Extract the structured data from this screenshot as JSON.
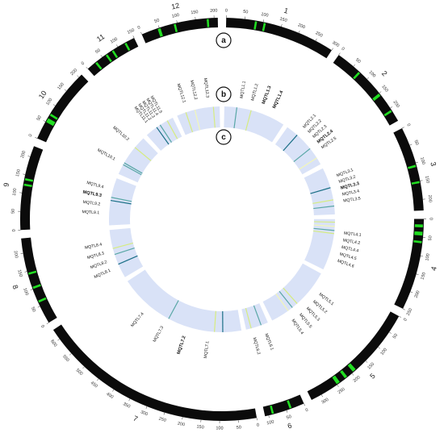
{
  "panel_tags": [
    "a",
    "b",
    "c"
  ],
  "colors": {
    "chromosome_band": "#0b0b0b",
    "qtl_highlight": "#22dd22",
    "heat_ring": "#d9e2f7",
    "heat_line_dark": "#1a6f86",
    "heat_line_mid": "#59a7a6",
    "heat_line_light": "#d6ec80",
    "heat_line_pale": "#f2f7b8"
  },
  "chromosomes": [
    {
      "id": "1",
      "length": 300,
      "ticks": [
        0,
        50,
        100,
        150,
        200,
        250,
        300
      ],
      "qtl": [
        "MQTL1.1",
        "MQTL1.2",
        "MQTL1.3",
        "MQTL1.4"
      ],
      "bold": [
        "MQTL1.3",
        "MQTL1.4"
      ],
      "highlights": [
        [
          78,
          5
        ],
        [
          102,
          4
        ]
      ],
      "heat": [
        [
          60,
          "heat_line_mid"
        ],
        [
          130,
          "heat_line_light"
        ]
      ]
    },
    {
      "id": "2",
      "length": 240,
      "ticks": [
        0,
        50,
        100,
        150,
        200
      ],
      "qtl": [
        "MQTL2.1",
        "MQTL2.2",
        "MQTL2.3",
        "MQTL2.4",
        "MQTL2.5"
      ],
      "bold": [
        "MQTL2.4"
      ],
      "highlights": [
        [
          70,
          6
        ],
        [
          150,
          8
        ],
        [
          205,
          6
        ]
      ],
      "heat": [
        [
          60,
          "heat_line_dark"
        ],
        [
          150,
          "heat_line_mid"
        ],
        [
          205,
          "heat_line_pale"
        ]
      ]
    },
    {
      "id": "3",
      "length": 230,
      "ticks": [
        0,
        50,
        100,
        150,
        200
      ],
      "qtl": [
        "MQTL3.1",
        "MQTL3.2",
        "MQTL3.3",
        "MQTL3.4",
        "MQTL3.5"
      ],
      "bold": [
        "MQTL3.3"
      ],
      "highlights": [
        [
          105,
          6
        ],
        [
          150,
          4
        ]
      ],
      "heat": [
        [
          100,
          "heat_line_dark"
        ],
        [
          160,
          "heat_line_light"
        ],
        [
          190,
          "heat_line_mid"
        ]
      ]
    },
    {
      "id": "4",
      "length": 250,
      "ticks": [
        0,
        50,
        100,
        150,
        200,
        250
      ],
      "qtl": [
        "MQTL4.1",
        "MQTL4.2",
        "MQTL4.4",
        "MQTL4.5",
        "MQTL4.6"
      ],
      "bold": [],
      "highlights": [
        [
          15,
          8
        ],
        [
          35,
          10
        ],
        [
          60,
          6
        ]
      ],
      "heat": [
        [
          15,
          "heat_line_light"
        ],
        [
          35,
          "heat_line_pale"
        ],
        [
          55,
          "heat_line_mid"
        ],
        [
          70,
          "heat_line_light"
        ]
      ]
    },
    {
      "id": "5",
      "length": 330,
      "ticks": [
        0,
        50,
        100,
        150,
        200,
        250,
        300
      ],
      "qtl": [
        "MQTL5.1",
        "MQTL5.2",
        "MQTL5.3",
        "MQTL5.5",
        "MQTL5.4"
      ],
      "bold": [],
      "highlights": [
        [
          185,
          10
        ],
        [
          215,
          8
        ],
        [
          240,
          10
        ]
      ],
      "heat": [
        [
          185,
          "heat_line_light"
        ],
        [
          215,
          "heat_line_mid"
        ],
        [
          240,
          "heat_line_pale"
        ]
      ]
    },
    {
      "id": "6",
      "length": 110,
      "ticks": [
        0,
        50,
        100
      ],
      "qtl": [
        "MQTL6.1",
        "MQTL6.2"
      ],
      "bold": [],
      "highlights": [
        [
          35,
          6
        ],
        [
          85,
          4
        ]
      ],
      "heat": [
        [
          35,
          "heat_line_mid"
        ],
        [
          85,
          "heat_line_light"
        ]
      ]
    },
    {
      "id": "7",
      "length": 630,
      "ticks": [
        0,
        50,
        100,
        150,
        200,
        250,
        300,
        350,
        400,
        450,
        500,
        550,
        600
      ],
      "qtl": [
        "MQTL7.1",
        "MQTL7.2",
        "MQTL7.3",
        "MQTL7.4"
      ],
      "bold": [
        "MQTL7.2"
      ],
      "highlights": [],
      "heat": [
        [
          90,
          "heat_line_dark"
        ],
        [
          130,
          "heat_line_light"
        ],
        [
          360,
          "heat_line_mid"
        ]
      ]
    },
    {
      "id": "8",
      "length": 240,
      "ticks": [
        0,
        50,
        100,
        150,
        200
      ],
      "qtl": [
        "MQTL8.1",
        "MQTL8.2",
        "MQTL8.3",
        "MQTL8.4"
      ],
      "bold": [],
      "highlights": [
        [
          60,
          6
        ],
        [
          100,
          6
        ],
        [
          140,
          4
        ]
      ],
      "heat": [
        [
          70,
          "heat_line_dark"
        ],
        [
          120,
          "heat_line_mid"
        ],
        [
          150,
          "heat_line_light"
        ]
      ]
    },
    {
      "id": "9",
      "length": 230,
      "ticks": [
        0,
        50,
        100,
        150,
        200
      ],
      "qtl": [
        "MQTL9.1",
        "MQTL9.2",
        "MQTL9.3",
        "MQTL9.4"
      ],
      "bold": [
        "MQTL9.3"
      ],
      "highlights": [
        [
          120,
          5
        ],
        [
          135,
          4
        ]
      ],
      "heat": [
        [
          120,
          "heat_line_dark"
        ],
        [
          135,
          "heat_line_mid"
        ]
      ]
    },
    {
      "id": "10",
      "length": 210,
      "ticks": [
        0,
        50,
        100,
        150,
        200
      ],
      "qtl": [
        "MQTL10.1",
        "MQTL10.2"
      ],
      "bold": [],
      "highlights": [
        [
          50,
          12
        ],
        [
          70,
          6
        ]
      ],
      "heat": [
        [
          50,
          "heat_line_mid"
        ],
        [
          60,
          "heat_line_mid"
        ],
        [
          150,
          "heat_line_light"
        ]
      ]
    },
    {
      "id": "11",
      "length": 150,
      "ticks": [
        0,
        50,
        100,
        150
      ],
      "qtl": [
        "MQTL11.1",
        "MQTL11.2",
        "MQTL11.3",
        "MQTL11.4",
        "MQTL11.5"
      ],
      "bold": [],
      "highlights": [
        [
          25,
          6
        ],
        [
          60,
          5
        ],
        [
          80,
          4
        ],
        [
          120,
          4
        ]
      ],
      "heat": [
        [
          60,
          "heat_line_dark"
        ],
        [
          80,
          "heat_line_mid"
        ],
        [
          120,
          "heat_line_light"
        ]
      ]
    },
    {
      "id": "12",
      "length": 210,
      "ticks": [
        0,
        50,
        100,
        150,
        200
      ],
      "qtl": [
        "MQTL12.1",
        "MQTL12.2",
        "MQTL12.3"
      ],
      "bold": [],
      "highlights": [
        [
          45,
          8
        ],
        [
          90,
          4
        ],
        [
          180,
          4
        ]
      ],
      "heat": [
        [
          45,
          "heat_line_light"
        ],
        [
          90,
          "heat_line_pale"
        ],
        [
          180,
          "heat_line_light"
        ]
      ]
    }
  ]
}
